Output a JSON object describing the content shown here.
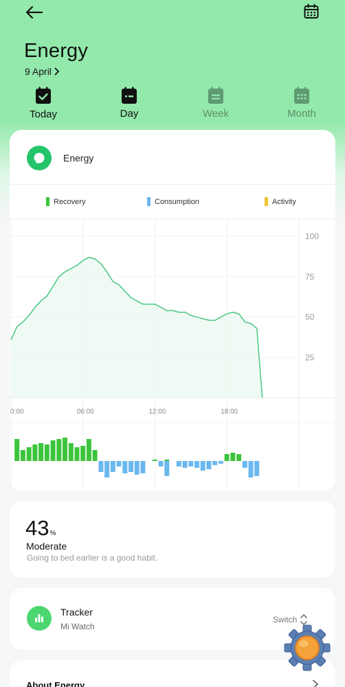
{
  "header": {
    "title": "Energy",
    "date": "9 April"
  },
  "tabs": [
    {
      "label": "Today",
      "icon": "check-calendar-icon",
      "state": "active"
    },
    {
      "label": "Day",
      "icon": "day-calendar-icon",
      "state": "selected"
    },
    {
      "label": "Week",
      "icon": "week-calendar-icon",
      "state": "inactive"
    },
    {
      "label": "Month",
      "icon": "month-calendar-icon",
      "state": "inactive"
    }
  ],
  "energy_card": {
    "title": "Energy",
    "legend": [
      {
        "label": "Recovery",
        "color": "#3cc43c"
      },
      {
        "label": "Consumption",
        "color": "#6bb8f0"
      },
      {
        "label": "Activity",
        "color": "#f2c230"
      }
    ]
  },
  "chart_data": [
    {
      "type": "line",
      "x_unit": "hours",
      "x": [
        0,
        0.5,
        1,
        1.5,
        2,
        2.5,
        3,
        3.5,
        4,
        4.5,
        5,
        5.5,
        6,
        6.5,
        7,
        7.5,
        8,
        8.5,
        9,
        9.5,
        10,
        10.5,
        11,
        11.5,
        12,
        12.5,
        13,
        13.5,
        14,
        14.5,
        15,
        15.5,
        16,
        16.5,
        17,
        17.5,
        18,
        18.5,
        19,
        19.5,
        20,
        20.5
      ],
      "values": [
        36,
        44,
        47,
        51,
        56,
        60,
        63,
        69,
        75,
        78,
        80,
        82,
        85,
        87,
        86,
        83,
        78,
        72,
        70,
        66,
        62,
        60,
        58,
        58,
        58,
        56,
        54,
        54,
        53,
        53,
        51,
        50,
        49,
        48,
        48,
        50,
        52,
        53,
        52,
        47,
        46,
        43
      ],
      "drop_to": 0,
      "ylim": [
        0,
        100
      ],
      "y_ticks": [
        "100",
        "75",
        "50",
        "25"
      ],
      "x_ticks": [
        "0:00",
        "06:00",
        "12:00",
        "18:00"
      ],
      "line_color": "#3cc47a",
      "grid": true
    },
    {
      "type": "bar",
      "x_unit": "hours",
      "series": [
        {
          "name": "Recovery",
          "color": "#3cc43c",
          "x": [
            0.5,
            1,
            1.5,
            2,
            2.5,
            3,
            3.5,
            4,
            4.5,
            5,
            5.5,
            6,
            6.5,
            7,
            12,
            13,
            18,
            18.5,
            19
          ],
          "values": [
            32,
            16,
            20,
            24,
            26,
            24,
            30,
            32,
            34,
            26,
            20,
            22,
            32,
            16,
            2,
            2,
            10,
            12,
            10
          ]
        },
        {
          "name": "Consumption",
          "color": "#6bb8f0",
          "x": [
            7.5,
            8,
            8.5,
            9,
            9.5,
            10,
            10.5,
            11,
            12.5,
            13,
            14,
            14.5,
            15,
            15.5,
            16,
            16.5,
            17,
            17.5,
            19.5,
            20,
            20.5
          ],
          "values": [
            -16,
            -24,
            -16,
            -8,
            -18,
            -16,
            -20,
            -18,
            -8,
            -22,
            -8,
            -10,
            -8,
            -10,
            -14,
            -12,
            -6,
            -4,
            -10,
            -24,
            -22
          ]
        }
      ]
    }
  ],
  "score_card": {
    "value": "43",
    "unit": "%",
    "level": "Moderate",
    "tip": "Going to bed earlier is a good habit."
  },
  "tracker_card": {
    "title": "Tracker",
    "device": "Mi Watch",
    "switch_label": "Switch"
  },
  "about_card": {
    "title": "About Energy"
  }
}
